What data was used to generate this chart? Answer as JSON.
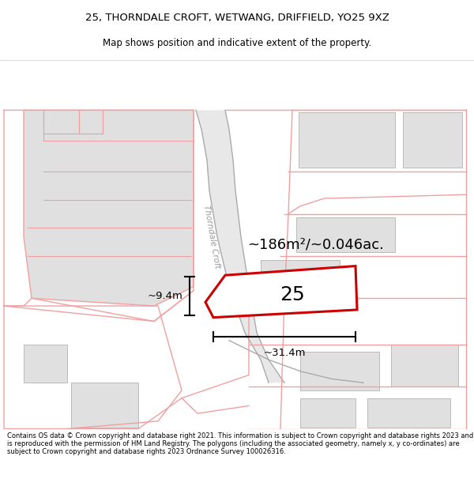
{
  "title_line1": "25, THORNDALE CROFT, WETWANG, DRIFFIELD, YO25 9XZ",
  "title_line2": "Map shows position and indicative extent of the property.",
  "footer_text": "Contains OS data © Crown copyright and database right 2021. This information is subject to Crown copyright and database rights 2023 and is reproduced with the permission of HM Land Registry. The polygons (including the associated geometry, namely x, y co-ordinates) are subject to Crown copyright and database rights 2023 Ordnance Survey 100026316.",
  "area_text": "~186m²/~0.046ac.",
  "label_25": "25",
  "dim_width": "~31.4m",
  "dim_height": "~9.4m",
  "street_label": "Thorndale Croft",
  "pink": "#f0a0a0",
  "red": "#cc0000",
  "bldg": "#e0e0e0",
  "bldg_edge": "#bbbbbb",
  "road_gray": "#d0d0d0",
  "light_gray": "#e8e8e8"
}
